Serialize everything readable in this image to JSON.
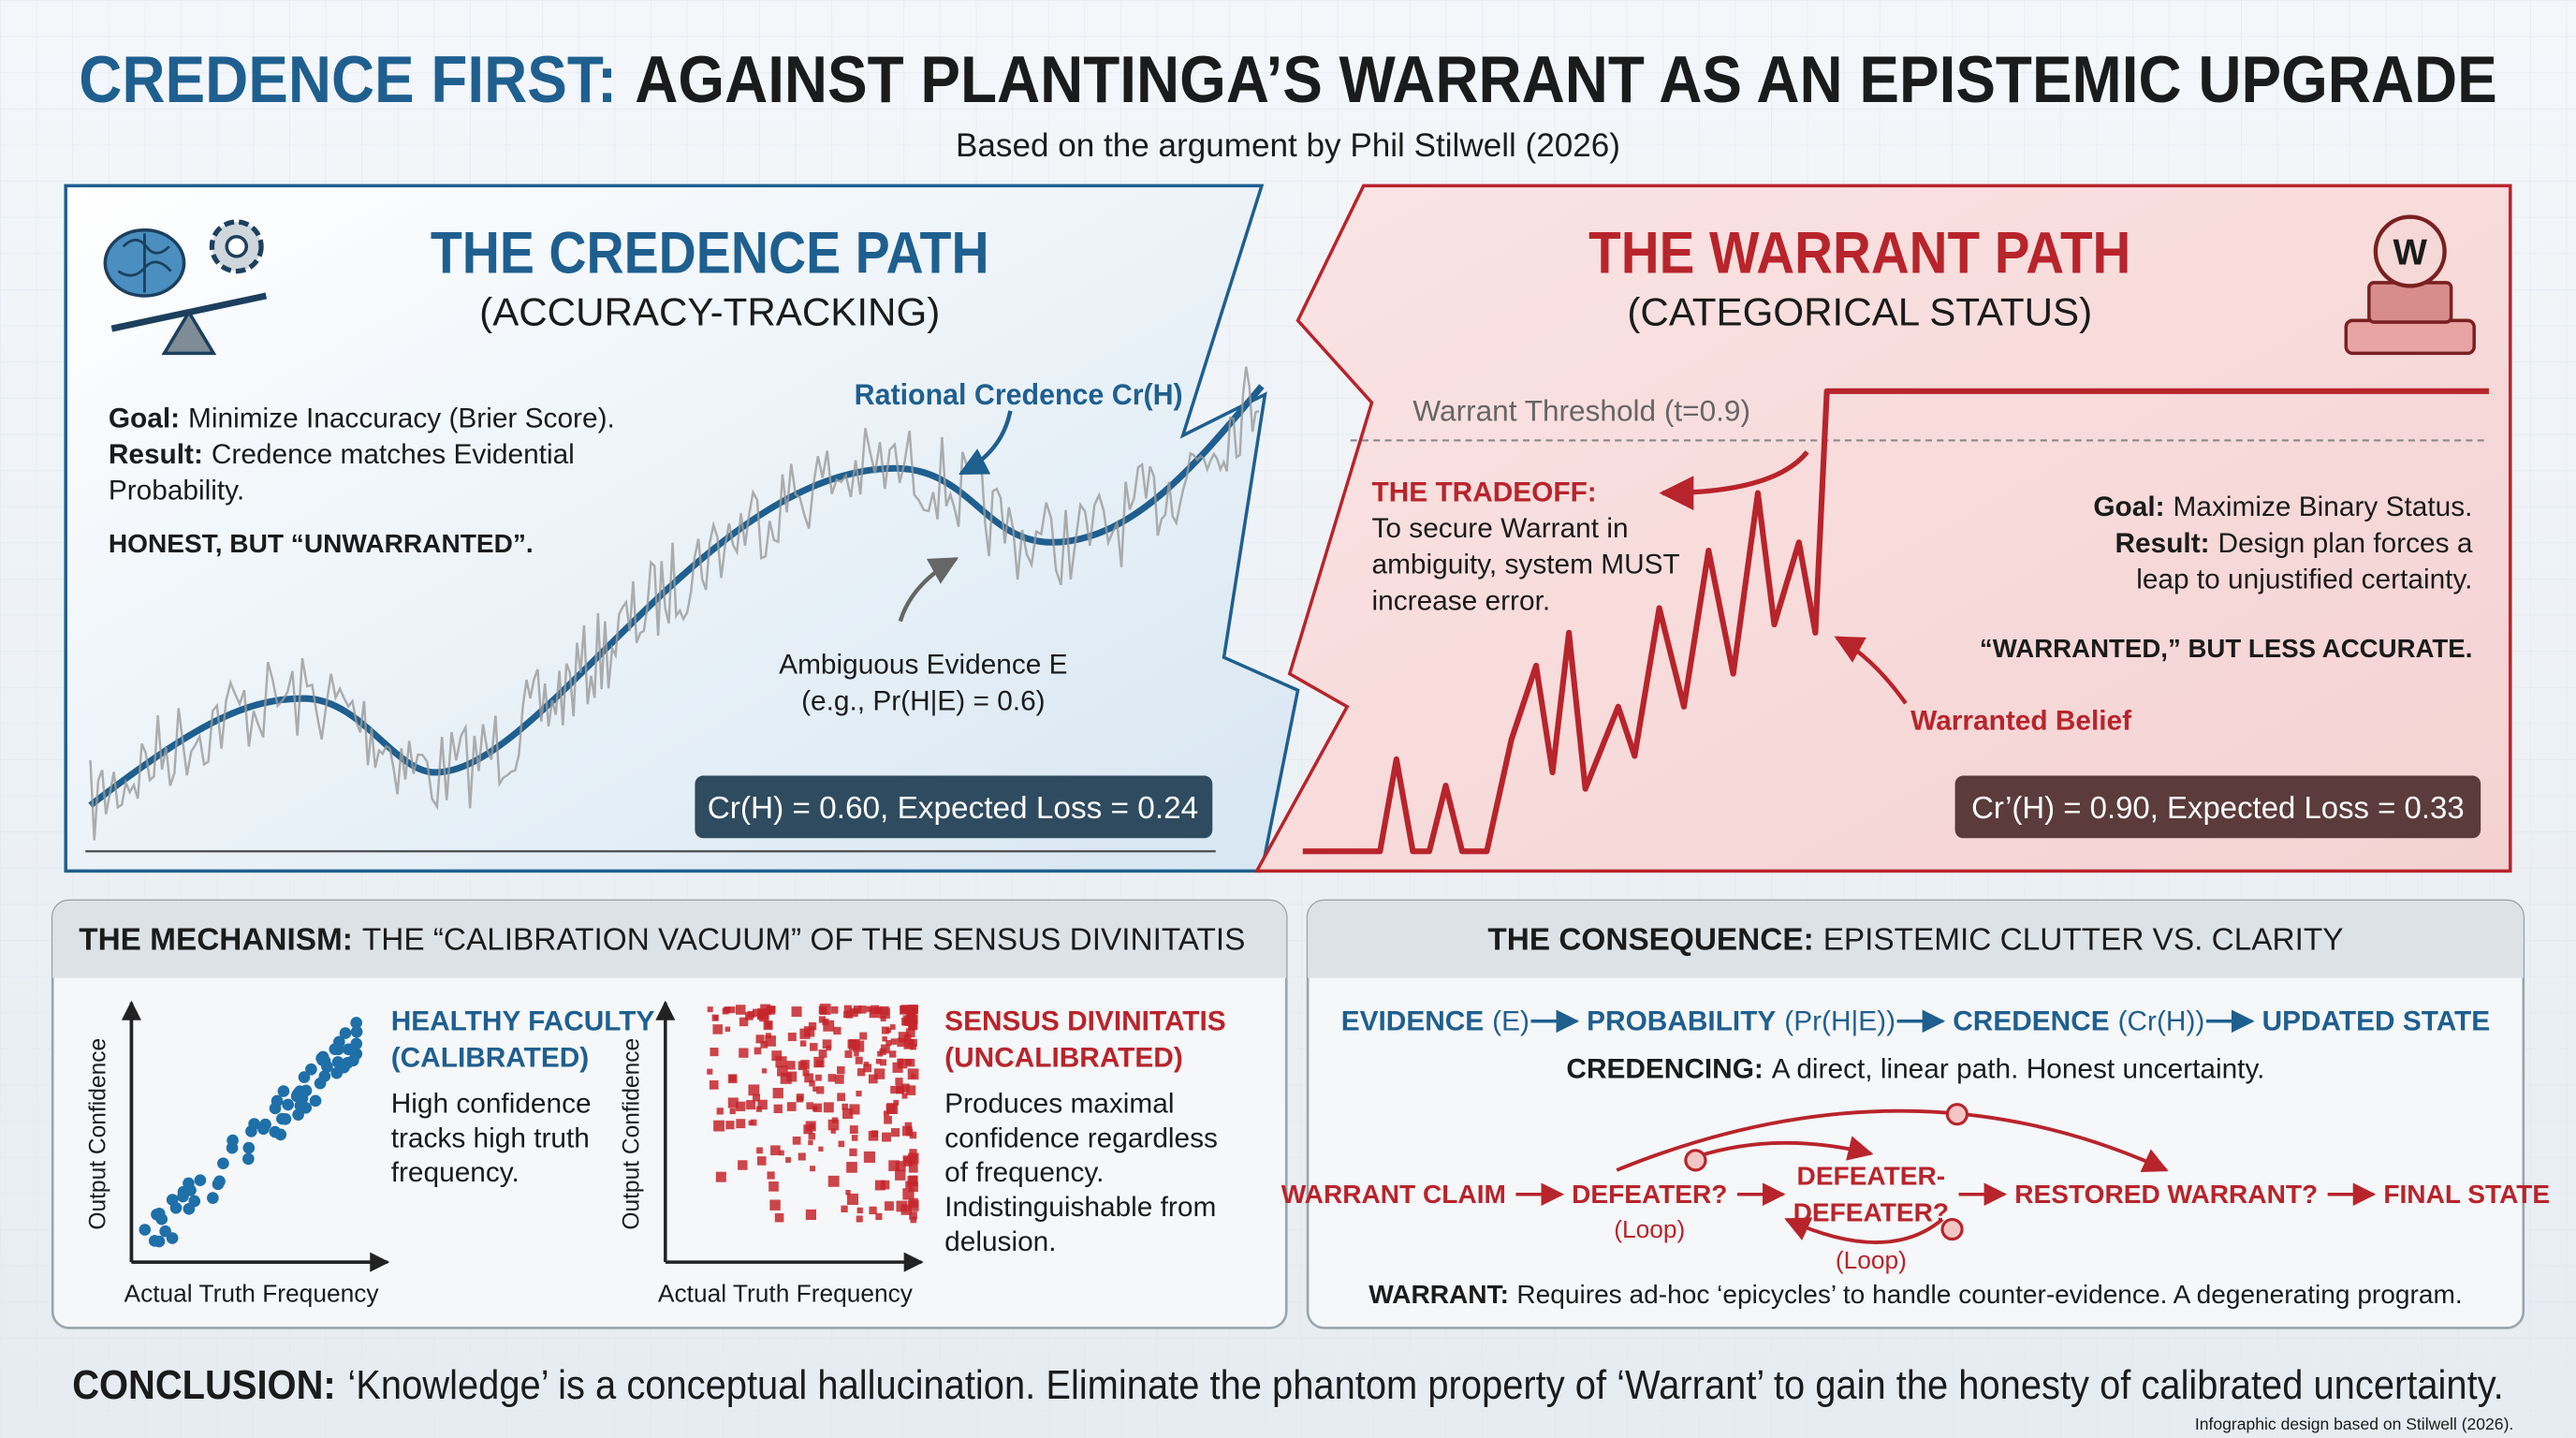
{
  "header": {
    "title_highlight": "CREDENCE FIRST:",
    "title_rest": "AGAINST PLANTINGA’S WARRANT AS AN EPISTEMIC UPGRADE",
    "subtitle": "Based on the argument by Phil Stilwell (2026)"
  },
  "credence_panel": {
    "title": "THE CREDENCE PATH",
    "subtitle": "(ACCURACY-TRACKING)",
    "goal_label": "Goal:",
    "goal_text": "Minimize Inaccuracy (Brier Score).",
    "result_label": "Result:",
    "result_lines": [
      "Credence matches Evidential",
      "Probability."
    ],
    "verdict": "HONEST, BUT “UNWARRANTED”.",
    "curve_label": "Rational Credence Cr(H)",
    "evidence_lines": [
      "Ambiguous Evidence E",
      "(e.g., Pr(H|E) = 0.6)"
    ],
    "summary": "Cr(H) = 0.60, Expected Loss = 0.24"
  },
  "warrant_panel": {
    "title": "THE WARRANT PATH",
    "subtitle": "(CATEGORICAL STATUS)",
    "icon_letter": "W",
    "threshold_label": "Warrant Threshold (t=0.9)",
    "tradeoff_label": "THE TRADEOFF:",
    "tradeoff_lines": [
      "To secure Warrant in",
      "ambiguity, system MUST",
      "increase error."
    ],
    "goal_label": "Goal:",
    "goal_text": "Maximize Binary Status.",
    "result_label": "Result:",
    "result_lines": [
      "Design plan forces a",
      "leap to unjustified certainty."
    ],
    "verdict": "“WARRANTED,” BUT LESS ACCURATE.",
    "belief_label": "Warranted Belief",
    "summary": "Cr’(H) = 0.90, Expected Loss = 0.33"
  },
  "mechanism": {
    "title_bold": "THE MECHANISM:",
    "title_rest": "THE “CALIBRATION VACUUM” OF THE SENSUS DIVINITATIS",
    "plots": [
      {
        "y_axis": "Output Confidence",
        "x_axis": "Actual Truth Frequency",
        "heading_lines": [
          "HEALTHY FACULTY",
          "(CALIBRATED)"
        ],
        "body_lines": [
          "High confidence",
          "tracks high truth",
          "frequency."
        ]
      },
      {
        "y_axis": "Output Confidence",
        "x_axis": "Actual Truth Frequency",
        "heading_lines": [
          "SENSUS DIVINITATIS",
          "(UNCALIBRATED)"
        ],
        "body_lines": [
          "Produces maximal",
          "confidence regardless",
          "of frequency.",
          "Indistinguishable from",
          "delusion."
        ]
      }
    ]
  },
  "consequence": {
    "title_bold": "THE CONSEQUENCE:",
    "title_rest": "EPISTEMIC CLUTTER VS. CLARITY",
    "credence_flow": [
      {
        "term": "EVIDENCE",
        "symbol": "(E)"
      },
      {
        "term": "PROBABILITY",
        "symbol": "(Pr(H|E))"
      },
      {
        "term": "CREDENCE",
        "symbol": "(Cr(H))"
      },
      {
        "term": "UPDATED STATE"
      }
    ],
    "credencing_label": "CREDENCING:",
    "credencing_text": "A direct, linear path. Honest uncertainty.",
    "warrant_flow": [
      {
        "lines": [
          "WARRANT CLAIM"
        ]
      },
      {
        "lines": [
          "DEFEATER?"
        ],
        "note": "(Loop)"
      },
      {
        "lines": [
          "DEFEATER-",
          "DEFEATER?"
        ],
        "note": "(Loop)"
      },
      {
        "lines": [
          "RESTORED WARRANT?"
        ]
      },
      {
        "lines": [
          "FINAL STATE"
        ]
      }
    ],
    "warrant_label": "WARRANT:",
    "warrant_text": "Requires ad-hoc ‘epicycles’ to handle counter-evidence. A degenerating program."
  },
  "conclusion": {
    "label": "CONCLUSION:",
    "text": "‘Knowledge’ is a conceptual hallucination. Eliminate the phantom property of ‘Warrant’ to gain the honesty of calibrated uncertainty.",
    "credit": "Infographic design based on Stilwell (2026)."
  }
}
